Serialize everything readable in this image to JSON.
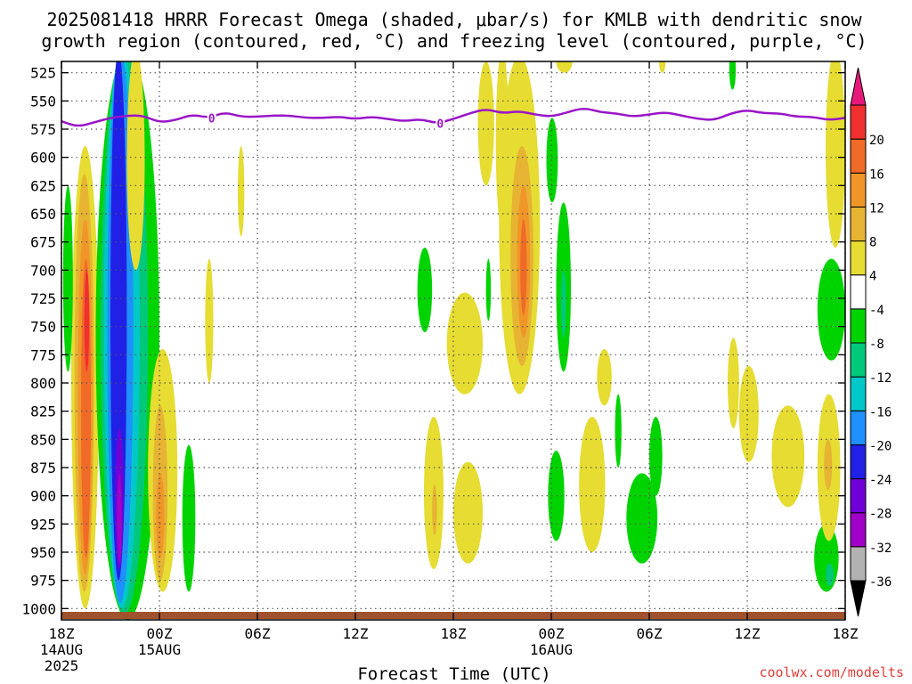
{
  "title": {
    "line1": "2025081418 HRRR Forecast Omega (shaded, μbar/s) for KMLB with dendritic snow",
    "line2": "growth region (contoured, red, °C) and freezing level (contoured, purple, °C)"
  },
  "credit": "coolwx.com/modelts",
  "chart_data": {
    "type": "heatmap",
    "title": "2025081418 HRRR Forecast Omega (shaded, μbar/s) for KMLB with dendritic snow growth region (contoured, red, °C) and freezing level (contoured, purple, °C)",
    "xlabel": "Forecast Time (UTC)",
    "ylabel": "",
    "x_range_hours": [
      0,
      48
    ],
    "y_range_hPa": [
      1010,
      515
    ],
    "y_ticks": [
      525,
      550,
      575,
      600,
      625,
      650,
      675,
      700,
      725,
      750,
      775,
      800,
      825,
      850,
      875,
      900,
      925,
      950,
      975,
      1000
    ],
    "x_ticks": [
      {
        "hour": 0,
        "label": "18Z",
        "sub1": "14AUG",
        "sub2": "2025"
      },
      {
        "hour": 6,
        "label": "00Z",
        "sub1": "15AUG",
        "sub2": ""
      },
      {
        "hour": 12,
        "label": "06Z",
        "sub1": "",
        "sub2": ""
      },
      {
        "hour": 18,
        "label": "12Z",
        "sub1": "",
        "sub2": ""
      },
      {
        "hour": 24,
        "label": "18Z",
        "sub1": "",
        "sub2": ""
      },
      {
        "hour": 30,
        "label": "00Z",
        "sub1": "16AUG",
        "sub2": ""
      },
      {
        "hour": 36,
        "label": "06Z",
        "sub1": "",
        "sub2": ""
      },
      {
        "hour": 42,
        "label": "12Z",
        "sub1": "",
        "sub2": ""
      },
      {
        "hour": 48,
        "label": "18Z",
        "sub1": "",
        "sub2": ""
      }
    ],
    "grid": true,
    "colorbar": {
      "bins": [
        {
          "color": "#b2b2b2"
        },
        {
          "color": "#a000c8"
        },
        {
          "color": "#7000d8"
        },
        {
          "color": "#2020e6"
        },
        {
          "color": "#1e90ff"
        },
        {
          "color": "#00c8c8"
        },
        {
          "color": "#00c87a"
        },
        {
          "color": "#00d400"
        },
        {
          "color": "#ffffff"
        },
        {
          "color": "#e6dc32"
        },
        {
          "color": "#e6b432"
        },
        {
          "color": "#f09628"
        },
        {
          "color": "#f06a28"
        },
        {
          "color": "#f03030"
        }
      ],
      "labels": [
        "-36",
        "-32",
        "-28",
        "-24",
        "-20",
        "-16",
        "-12",
        "-8",
        "-4",
        "4",
        "8",
        "12",
        "16",
        "20"
      ],
      "under_color": "#000000",
      "over_color": "#e8187a"
    },
    "freezing_level": {
      "label": "0",
      "label_hours": [
        9.2,
        23.2
      ],
      "points": [
        [
          0,
          568
        ],
        [
          1,
          573
        ],
        [
          2,
          569
        ],
        [
          3,
          565
        ],
        [
          4,
          563
        ],
        [
          5,
          563
        ],
        [
          6,
          569
        ],
        [
          7,
          567
        ],
        [
          8,
          562
        ],
        [
          9,
          565
        ],
        [
          10,
          560
        ],
        [
          11,
          564
        ],
        [
          12,
          564
        ],
        [
          13,
          563
        ],
        [
          14,
          563
        ],
        [
          15,
          565
        ],
        [
          16,
          565
        ],
        [
          17,
          564
        ],
        [
          18,
          566
        ],
        [
          19,
          564
        ],
        [
          20,
          566
        ],
        [
          21,
          568
        ],
        [
          22,
          566
        ],
        [
          23,
          570
        ],
        [
          24,
          566
        ],
        [
          25,
          561
        ],
        [
          26,
          557
        ],
        [
          27,
          561
        ],
        [
          28,
          559
        ],
        [
          29,
          562
        ],
        [
          30,
          564
        ],
        [
          31,
          560
        ],
        [
          32,
          556
        ],
        [
          33,
          560
        ],
        [
          34,
          561
        ],
        [
          35,
          564
        ],
        [
          36,
          562
        ],
        [
          37,
          560
        ],
        [
          38,
          563
        ],
        [
          39,
          566
        ],
        [
          40,
          567
        ],
        [
          41,
          561
        ],
        [
          42,
          558
        ],
        [
          43,
          561
        ],
        [
          44,
          561
        ],
        [
          45,
          564
        ],
        [
          46,
          564
        ],
        [
          47,
          567
        ],
        [
          48,
          565
        ]
      ]
    },
    "omega_regions": [
      {
        "bin": 9,
        "t0": 0.6,
        "t1": 2.3,
        "p0": 1000,
        "p1": 590
      },
      {
        "bin": 10,
        "t0": 0.8,
        "t1": 2.0,
        "p0": 985,
        "p1": 615
      },
      {
        "bin": 11,
        "t0": 1.0,
        "t1": 1.9,
        "p0": 970,
        "p1": 655
      },
      {
        "bin": 12,
        "t0": 1.2,
        "t1": 1.8,
        "p0": 955,
        "p1": 690
      },
      {
        "bin": 13,
        "t0": 1.4,
        "t1": 1.7,
        "p0": 790,
        "p1": 700
      },
      {
        "bin": 7,
        "t0": 0.1,
        "t1": 0.7,
        "p0": 790,
        "p1": 625
      },
      {
        "bin": 7,
        "t0": 2.1,
        "t1": 6.0,
        "p0": 1010,
        "p1": 505
      },
      {
        "bin": 6,
        "t0": 2.4,
        "t1": 5.3,
        "p0": 1005,
        "p1": 505
      },
      {
        "bin": 5,
        "t0": 2.6,
        "t1": 4.8,
        "p0": 1000,
        "p1": 505
      },
      {
        "bin": 4,
        "t0": 2.8,
        "t1": 4.4,
        "p0": 995,
        "p1": 505
      },
      {
        "bin": 3,
        "t0": 3.0,
        "t1": 4.0,
        "p0": 975,
        "p1": 505
      },
      {
        "bin": 2,
        "t0": 3.3,
        "t1": 3.8,
        "p0": 965,
        "p1": 840
      },
      {
        "bin": 1,
        "t0": 3.4,
        "t1": 3.7,
        "p0": 960,
        "p1": 880
      },
      {
        "bin": 9,
        "t0": 4.0,
        "t1": 5.1,
        "p0": 700,
        "p1": 505
      },
      {
        "bin": 9,
        "t0": 5.3,
        "t1": 7.1,
        "p0": 985,
        "p1": 770
      },
      {
        "bin": 10,
        "t0": 5.6,
        "t1": 6.5,
        "p0": 975,
        "p1": 820
      },
      {
        "bin": 11,
        "t0": 5.8,
        "t1": 6.3,
        "p0": 955,
        "p1": 880
      },
      {
        "bin": 7,
        "t0": 7.4,
        "t1": 8.2,
        "p0": 985,
        "p1": 855
      },
      {
        "bin": 9,
        "t0": 8.8,
        "t1": 9.3,
        "p0": 800,
        "p1": 690
      },
      {
        "bin": 9,
        "t0": 10.8,
        "t1": 11.2,
        "p0": 670,
        "p1": 590
      },
      {
        "bin": 7,
        "t0": 21.8,
        "t1": 22.7,
        "p0": 755,
        "p1": 680
      },
      {
        "bin": 9,
        "t0": 22.2,
        "t1": 23.4,
        "p0": 965,
        "p1": 830
      },
      {
        "bin": 10,
        "t0": 22.7,
        "t1": 23.0,
        "p0": 935,
        "p1": 890
      },
      {
        "bin": 9,
        "t0": 23.6,
        "t1": 25.8,
        "p0": 810,
        "p1": 720
      },
      {
        "bin": 9,
        "t0": 24.0,
        "t1": 25.8,
        "p0": 960,
        "p1": 870
      },
      {
        "bin": 7,
        "t0": 26.0,
        "t1": 26.3,
        "p0": 745,
        "p1": 690
      },
      {
        "bin": 9,
        "t0": 25.5,
        "t1": 26.5,
        "p0": 625,
        "p1": 515
      },
      {
        "bin": 9,
        "t0": 26.6,
        "t1": 27.4,
        "p0": 665,
        "p1": 505
      },
      {
        "bin": 9,
        "t0": 26.8,
        "t1": 29.3,
        "p0": 810,
        "p1": 510
      },
      {
        "bin": 10,
        "t0": 27.5,
        "t1": 28.9,
        "p0": 785,
        "p1": 590
      },
      {
        "bin": 11,
        "t0": 27.9,
        "t1": 28.7,
        "p0": 760,
        "p1": 625
      },
      {
        "bin": 12,
        "t0": 28.1,
        "t1": 28.5,
        "p0": 740,
        "p1": 655
      },
      {
        "bin": 7,
        "t0": 29.7,
        "t1": 30.4,
        "p0": 640,
        "p1": 565
      },
      {
        "bin": 7,
        "t0": 30.3,
        "t1": 31.2,
        "p0": 790,
        "p1": 640
      },
      {
        "bin": 6,
        "t0": 30.6,
        "t1": 30.9,
        "p0": 760,
        "p1": 700
      },
      {
        "bin": 9,
        "t0": 30.3,
        "t1": 31.3,
        "p0": 525,
        "p1": 505
      },
      {
        "bin": 7,
        "t0": 29.8,
        "t1": 30.8,
        "p0": 940,
        "p1": 860
      },
      {
        "bin": 9,
        "t0": 31.7,
        "t1": 33.3,
        "p0": 950,
        "p1": 830
      },
      {
        "bin": 9,
        "t0": 32.8,
        "t1": 33.7,
        "p0": 820,
        "p1": 770
      },
      {
        "bin": 7,
        "t0": 33.9,
        "t1": 34.3,
        "p0": 875,
        "p1": 810
      },
      {
        "bin": 7,
        "t0": 34.6,
        "t1": 36.5,
        "p0": 960,
        "p1": 880
      },
      {
        "bin": 7,
        "t0": 36.0,
        "t1": 36.8,
        "p0": 900,
        "p1": 830
      },
      {
        "bin": 9,
        "t0": 36.6,
        "t1": 37.0,
        "p0": 525,
        "p1": 505
      },
      {
        "bin": 9,
        "t0": 41.5,
        "t1": 42.7,
        "p0": 870,
        "p1": 785
      },
      {
        "bin": 9,
        "t0": 43.5,
        "t1": 45.5,
        "p0": 910,
        "p1": 820
      },
      {
        "bin": 9,
        "t0": 40.8,
        "t1": 41.5,
        "p0": 840,
        "p1": 760
      },
      {
        "bin": 7,
        "t0": 46.1,
        "t1": 47.6,
        "p0": 985,
        "p1": 925
      },
      {
        "bin": 6,
        "t0": 46.8,
        "t1": 47.3,
        "p0": 980,
        "p1": 960
      },
      {
        "bin": 9,
        "t0": 46.3,
        "t1": 47.7,
        "p0": 940,
        "p1": 810
      },
      {
        "bin": 10,
        "t0": 46.7,
        "t1": 47.2,
        "p0": 895,
        "p1": 850
      },
      {
        "bin": 7,
        "t0": 46.3,
        "t1": 48.0,
        "p0": 780,
        "p1": 690
      },
      {
        "bin": 9,
        "t0": 46.8,
        "t1": 48.0,
        "p0": 680,
        "p1": 505
      },
      {
        "bin": 7,
        "t0": 40.9,
        "t1": 41.3,
        "p0": 540,
        "p1": 505
      }
    ]
  }
}
